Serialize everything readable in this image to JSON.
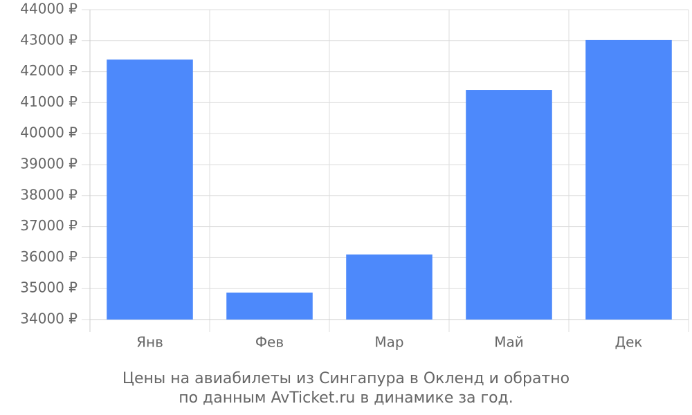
{
  "chart_data": {
    "type": "bar",
    "caption": [
      "Цены на авиабилеты из Сингапура в Окленд и обратно",
      "по данным AvTicket.ru в динамике за год."
    ],
    "categories": [
      "Янв",
      "Фев",
      "Мар",
      "Май",
      "Дек"
    ],
    "values": [
      42390,
      34870,
      36100,
      41410,
      43020
    ],
    "color": "#4d89fb",
    "ylim": [
      34000,
      44000
    ],
    "yticks": [
      {
        "value": 34000,
        "label": "34000 ₽"
      },
      {
        "value": 35000,
        "label": "35000 ₽"
      },
      {
        "value": 36000,
        "label": "36000 ₽"
      },
      {
        "value": 37000,
        "label": "37000 ₽"
      },
      {
        "value": 38000,
        "label": "38000 ₽"
      },
      {
        "value": 39000,
        "label": "39000 ₽"
      },
      {
        "value": 40000,
        "label": "40000 ₽"
      },
      {
        "value": 41000,
        "label": "41000 ₽"
      },
      {
        "value": 42000,
        "label": "42000 ₽"
      },
      {
        "value": 43000,
        "label": "43000 ₽"
      },
      {
        "value": 44000,
        "label": "44000 ₽"
      }
    ],
    "grid": true
  }
}
